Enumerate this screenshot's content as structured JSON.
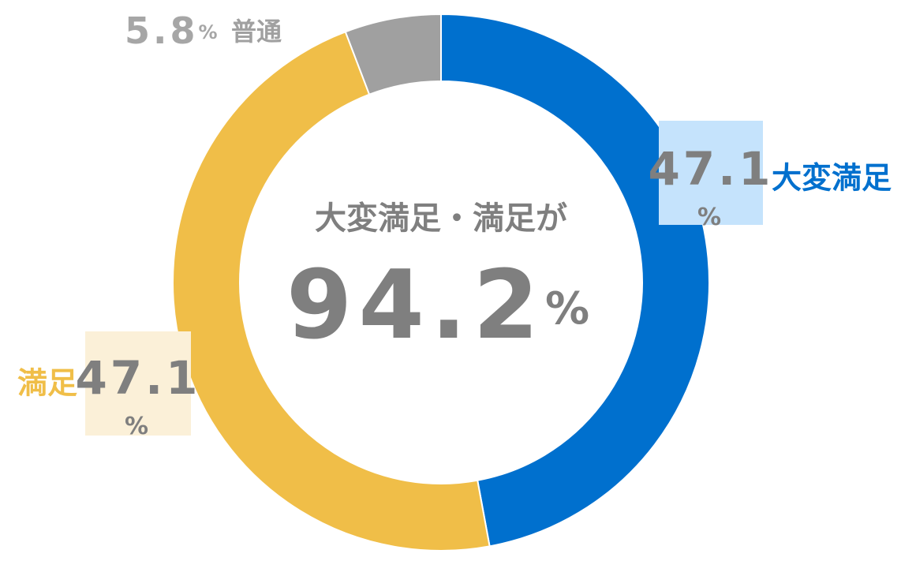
{
  "chart_data": {
    "type": "donut",
    "categories": [
      "大変満足",
      "満足",
      "普通"
    ],
    "values": [
      47.1,
      47.1,
      5.8
    ],
    "value_labels": [
      "47.1%",
      "47.1%",
      "5.8%"
    ],
    "colors": [
      "#0070ce",
      "#f0be48",
      "#a0a0a0"
    ],
    "center_label": "大変満足・満足が",
    "center_value": "94.2%"
  }
}
